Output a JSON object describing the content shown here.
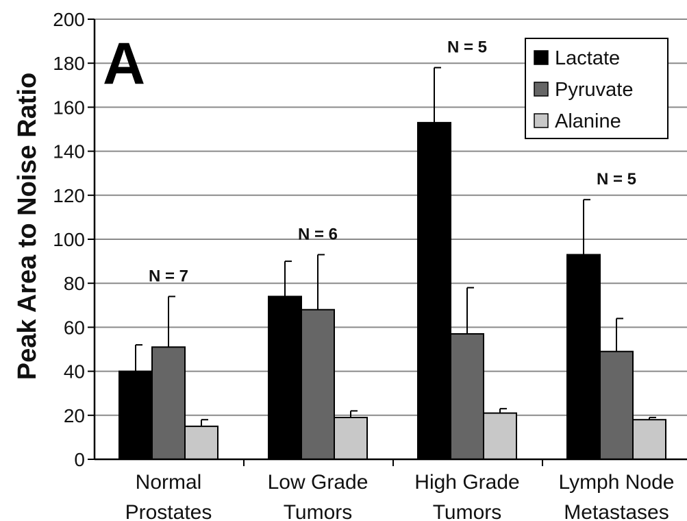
{
  "chart_data": {
    "type": "bar",
    "panel_label": "A",
    "ylabel": "Peak Area to Noise Ratio",
    "xlabel": "",
    "ylim": [
      0,
      200
    ],
    "yticks": [
      0,
      20,
      40,
      60,
      80,
      100,
      120,
      140,
      160,
      180,
      200
    ],
    "grid": true,
    "legend_position": "top-right",
    "categories": [
      [
        "Normal",
        "Prostates"
      ],
      [
        "Low Grade",
        "Tumors"
      ],
      [
        "High Grade",
        "Tumors"
      ],
      [
        "Lymph Node",
        "Metastases"
      ]
    ],
    "annotations": [
      "N = 7",
      "N = 6",
      "N = 5",
      "N = 5"
    ],
    "series": [
      {
        "name": "Lactate",
        "color": "#000000",
        "values": [
          40,
          74,
          153,
          93
        ],
        "errors": [
          12,
          16,
          25,
          25
        ]
      },
      {
        "name": "Pyruvate",
        "color": "#666666",
        "values": [
          51,
          68,
          57,
          49
        ],
        "errors": [
          23,
          25,
          21,
          15
        ]
      },
      {
        "name": "Alanine",
        "color": "#c8c8c8",
        "values": [
          15,
          19,
          21,
          18
        ],
        "errors": [
          3,
          3,
          2,
          1
        ]
      }
    ]
  }
}
